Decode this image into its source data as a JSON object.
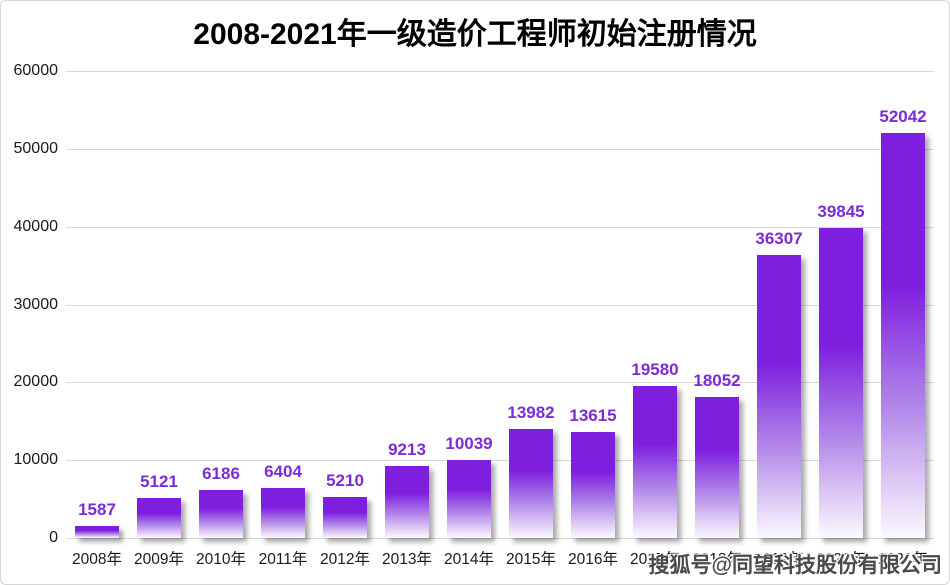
{
  "title": "2008-2021年一级造价工程师初始注册情况",
  "watermark": "搜狐号@同望科技股份有限公司",
  "chart_data": {
    "type": "bar",
    "title": "2008-2021年一级造价工程师初始注册情况",
    "categories": [
      "2008年",
      "2009年",
      "2010年",
      "2011年",
      "2012年",
      "2013年",
      "2014年",
      "2015年",
      "2016年",
      "2017年",
      "2018年",
      "2019年",
      "2020年",
      "2021年"
    ],
    "values": [
      1587,
      5121,
      6186,
      6404,
      5210,
      9213,
      10039,
      13982,
      13615,
      19580,
      18052,
      36307,
      39845,
      52042
    ],
    "xlabel": "",
    "ylabel": "",
    "ylim": [
      0,
      60000
    ],
    "yticks": [
      0,
      10000,
      20000,
      30000,
      40000,
      50000,
      60000
    ],
    "grid": true,
    "legend": "none",
    "data_labels": true
  },
  "colors": {
    "bar_top": "#7e1fdf",
    "bar_mid": "#b288e9",
    "bar_low": "#ddc8f5",
    "bar_bottom": "#fbf9fe",
    "value_label": "#7d2ad9",
    "gridline": "#d9d9d9",
    "axis_text": "#1a1a1a",
    "title_text": "#000000",
    "watermark_text": "#4a4a4a"
  }
}
